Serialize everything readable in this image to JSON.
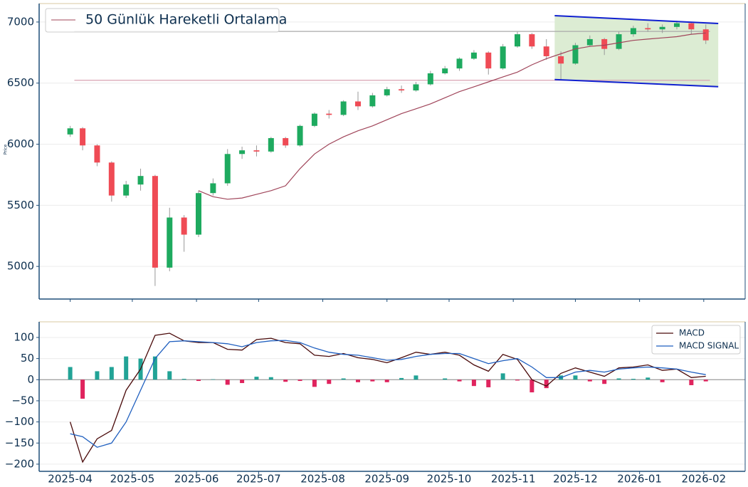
{
  "chart_data": [
    {
      "type": "candlestick",
      "y_label": "Price",
      "x": [
        "2025-04-01",
        "2025-04-07",
        "2025-04-14",
        "2025-04-21",
        "2025-04-28",
        "2025-05-05",
        "2025-05-12",
        "2025-05-19",
        "2025-05-26",
        "2025-06-02",
        "2025-06-09",
        "2025-06-16",
        "2025-06-23",
        "2025-06-30",
        "2025-07-07",
        "2025-07-14",
        "2025-07-21",
        "2025-07-28",
        "2025-08-04",
        "2025-08-11",
        "2025-08-18",
        "2025-08-25",
        "2025-09-01",
        "2025-09-08",
        "2025-09-15",
        "2025-09-22",
        "2025-09-29",
        "2025-10-06",
        "2025-10-13",
        "2025-10-20",
        "2025-10-27",
        "2025-11-03",
        "2025-11-10",
        "2025-11-17",
        "2025-11-24",
        "2025-12-01",
        "2025-12-08",
        "2025-12-15",
        "2025-12-22",
        "2025-12-29",
        "2026-01-05",
        "2026-01-12",
        "2026-01-19",
        "2026-01-26",
        "2026-02-02"
      ],
      "open": [
        6080,
        6130,
        5990,
        5850,
        5580,
        5670,
        5740,
        4990,
        5400,
        5260,
        5600,
        5680,
        5920,
        5950,
        5940,
        6050,
        5990,
        6150,
        6250,
        6240,
        6350,
        6310,
        6400,
        6450,
        6440,
        6490,
        6580,
        6620,
        6700,
        6750,
        6620,
        6800,
        6900,
        6800,
        6720,
        6660,
        6810,
        6860,
        6780,
        6900,
        6950,
        6940,
        6960,
        6990,
        6940
      ],
      "high": [
        6150,
        6140,
        6000,
        5860,
        5700,
        5800,
        5750,
        5480,
        5420,
        5620,
        5720,
        5960,
        5980,
        5990,
        6060,
        6060,
        6160,
        6260,
        6280,
        6360,
        6430,
        6420,
        6470,
        6480,
        6510,
        6600,
        6640,
        6710,
        6770,
        6760,
        6820,
        6920,
        6910,
        6860,
        6760,
        6830,
        6890,
        6870,
        6920,
        6970,
        6990,
        6980,
        7010,
        7000,
        6980
      ],
      "low": [
        6060,
        5950,
        5820,
        5530,
        5560,
        5620,
        4840,
        4960,
        5120,
        5240,
        5580,
        5660,
        5880,
        5900,
        5930,
        5970,
        5980,
        6140,
        6210,
        6230,
        6280,
        6300,
        6390,
        6420,
        6430,
        6480,
        6570,
        6600,
        6690,
        6570,
        6610,
        6790,
        6780,
        6690,
        6530,
        6650,
        6800,
        6730,
        6770,
        6880,
        6920,
        6910,
        6940,
        6900,
        6820
      ],
      "close": [
        6130,
        5990,
        5850,
        5580,
        5670,
        5740,
        4990,
        5400,
        5260,
        5600,
        5680,
        5920,
        5950,
        5940,
        6050,
        5990,
        6150,
        6250,
        6240,
        6350,
        6310,
        6400,
        6450,
        6440,
        6490,
        6580,
        6620,
        6700,
        6750,
        6620,
        6800,
        6900,
        6800,
        6720,
        6660,
        6810,
        6860,
        6780,
        6900,
        6950,
        6940,
        6960,
        6990,
        6940,
        6850
      ],
      "up_color": "#1eaa5f",
      "down_color": "#ef4b55",
      "ma": {
        "name": "50 Günlük Hareketli Ortalama",
        "color": "#a0455a",
        "values": [
          null,
          null,
          null,
          null,
          null,
          null,
          null,
          null,
          null,
          5620,
          5570,
          5550,
          5560,
          5590,
          5620,
          5660,
          5800,
          5920,
          6000,
          6060,
          6110,
          6150,
          6200,
          6250,
          6290,
          6330,
          6380,
          6430,
          6470,
          6510,
          6550,
          6590,
          6650,
          6700,
          6740,
          6780,
          6800,
          6810,
          6830,
          6850,
          6860,
          6870,
          6880,
          6900,
          6910
        ]
      },
      "channel": {
        "x": [
          "2025-11-21",
          "2026-02-08"
        ],
        "upper": [
          7052,
          6988
        ],
        "lower": [
          6529,
          6471
        ],
        "color": "#1020d0",
        "fill": "#dcecd3"
      },
      "levels": {
        "x": [
          "2025-04-03",
          "2026-02-04"
        ],
        "values": [
          6923,
          6523
        ],
        "colors": [
          "#aaaaaa",
          "#d9a3b3"
        ]
      },
      "xlim": [
        "2025-03-17",
        "2026-02-21"
      ],
      "ylim": [
        4733,
        7151
      ],
      "yticks": [
        5000,
        5500,
        6000,
        6500,
        7000
      ],
      "grid": true
    },
    {
      "type": "macd",
      "x": [
        "2025-04-01",
        "2025-04-07",
        "2025-04-14",
        "2025-04-21",
        "2025-04-28",
        "2025-05-05",
        "2025-05-12",
        "2025-05-19",
        "2025-05-26",
        "2025-06-02",
        "2025-06-09",
        "2025-06-16",
        "2025-06-23",
        "2025-06-30",
        "2025-07-07",
        "2025-07-14",
        "2025-07-21",
        "2025-07-28",
        "2025-08-04",
        "2025-08-11",
        "2025-08-18",
        "2025-08-25",
        "2025-09-01",
        "2025-09-08",
        "2025-09-15",
        "2025-09-22",
        "2025-09-29",
        "2025-10-06",
        "2025-10-13",
        "2025-10-20",
        "2025-10-27",
        "2025-11-03",
        "2025-11-10",
        "2025-11-17",
        "2025-11-24",
        "2025-12-01",
        "2025-12-08",
        "2025-12-15",
        "2025-12-22",
        "2025-12-29",
        "2026-01-05",
        "2026-01-12",
        "2026-01-19",
        "2026-01-26",
        "2026-02-02"
      ],
      "series": [
        {
          "name": "MACD",
          "color": "#4a0a0a",
          "values": [
            -100,
            -195,
            -140,
            -120,
            -25,
            25,
            105,
            110,
            92,
            88,
            88,
            72,
            70,
            95,
            98,
            88,
            85,
            58,
            55,
            62,
            52,
            48,
            40,
            52,
            65,
            60,
            65,
            58,
            35,
            20,
            60,
            48,
            0,
            -15,
            15,
            28,
            18,
            8,
            28,
            30,
            35,
            22,
            25,
            5,
            8
          ]
        },
        {
          "name": "MACD SIGNAL",
          "color": "#1f5fbf",
          "values": [
            -128,
            -135,
            -160,
            -150,
            -100,
            -25,
            50,
            90,
            92,
            90,
            88,
            85,
            78,
            88,
            92,
            93,
            88,
            75,
            65,
            60,
            58,
            52,
            46,
            48,
            55,
            60,
            62,
            62,
            50,
            38,
            45,
            50,
            30,
            5,
            5,
            18,
            22,
            18,
            25,
            28,
            30,
            28,
            25,
            18,
            12
          ]
        }
      ],
      "histogram": {
        "values": [
          30,
          -45,
          20,
          30,
          55,
          50,
          55,
          20,
          2,
          -3,
          1,
          -12,
          -8,
          7,
          6,
          -5,
          -3,
          -17,
          -10,
          3,
          -6,
          -4,
          -6,
          4,
          10,
          0,
          3,
          -4,
          -15,
          -18,
          15,
          -2,
          -30,
          -20,
          10,
          10,
          -4,
          -10,
          3,
          2,
          5,
          -6,
          0,
          -13,
          -4
        ],
        "up_color": "#22a396",
        "down_color": "#e0245e"
      },
      "legend": "upper right",
      "xlim": [
        "2025-03-17",
        "2026-02-21"
      ],
      "xticks": [
        {
          "value": "2025-04-01",
          "label": "2025-04"
        },
        {
          "value": "2025-05-01",
          "label": "2025-05"
        },
        {
          "value": "2025-06-01",
          "label": "2025-06"
        },
        {
          "value": "2025-07-01",
          "label": "2025-07"
        },
        {
          "value": "2025-08-01",
          "label": "2025-08"
        },
        {
          "value": "2025-09-01",
          "label": "2025-09"
        },
        {
          "value": "2025-10-01",
          "label": "2025-10"
        },
        {
          "value": "2025-11-01",
          "label": "2025-11"
        },
        {
          "value": "2025-12-01",
          "label": "2025-12"
        },
        {
          "value": "2026-01-01",
          "label": "2026-01"
        },
        {
          "value": "2026-02-01",
          "label": "2026-02"
        }
      ],
      "ylim": [
        -217,
        137
      ],
      "yticks": [
        {
          "value": -200,
          "label": "−200"
        },
        {
          "value": -150,
          "label": "−150"
        },
        {
          "value": -100,
          "label": "−100"
        },
        {
          "value": -50,
          "label": "−50"
        },
        0,
        50,
        100
      ],
      "grid": true
    }
  ]
}
